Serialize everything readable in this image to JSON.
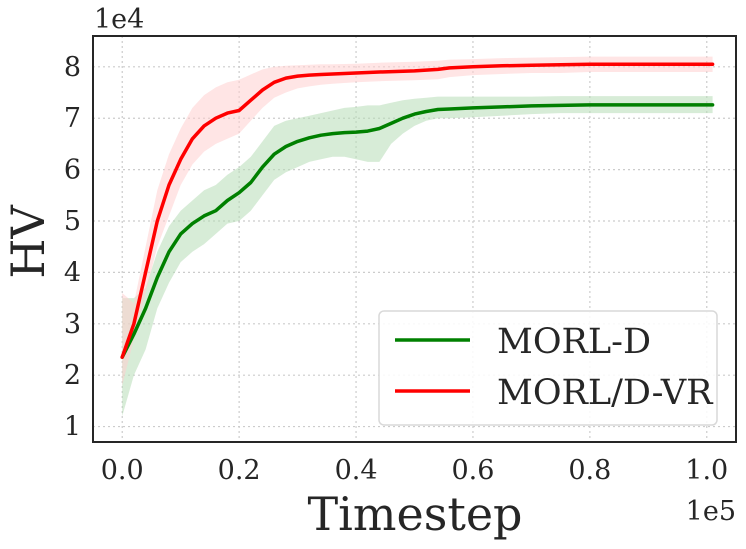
{
  "chart_data": {
    "type": "line",
    "title": "",
    "xlabel": "Timestep",
    "ylabel": "HV",
    "x_offset_label": "1e5",
    "y_offset_label": "1e4",
    "xlim": [
      -0.05,
      1.05
    ],
    "ylim": [
      0.7,
      8.6
    ],
    "xticks": [
      0.0,
      0.2,
      0.4,
      0.6,
      0.8,
      1.0
    ],
    "xtick_labels": [
      "0.0",
      "0.2",
      "0.4",
      "0.6",
      "0.8",
      "1.0"
    ],
    "yticks": [
      1,
      2,
      3,
      4,
      5,
      6,
      7,
      8
    ],
    "ytick_labels": [
      "1",
      "2",
      "3",
      "4",
      "5",
      "6",
      "7",
      "8"
    ],
    "grid": true,
    "legend_position": "lower-right",
    "series": [
      {
        "name": "MORL-D",
        "color": "#008000",
        "band_color": "#b7dcb7",
        "x": [
          0.0,
          0.02,
          0.04,
          0.06,
          0.08,
          0.1,
          0.12,
          0.14,
          0.16,
          0.18,
          0.2,
          0.22,
          0.24,
          0.26,
          0.28,
          0.3,
          0.32,
          0.34,
          0.36,
          0.38,
          0.4,
          0.42,
          0.44,
          0.46,
          0.48,
          0.5,
          0.52,
          0.54,
          0.56,
          0.6,
          0.65,
          0.7,
          0.75,
          0.8,
          0.85,
          0.9,
          0.95,
          1.01
        ],
        "values": [
          2.35,
          2.8,
          3.3,
          3.9,
          4.4,
          4.75,
          4.95,
          5.1,
          5.2,
          5.4,
          5.55,
          5.75,
          6.05,
          6.3,
          6.45,
          6.55,
          6.62,
          6.67,
          6.7,
          6.72,
          6.73,
          6.75,
          6.8,
          6.9,
          7.0,
          7.08,
          7.13,
          7.17,
          7.18,
          7.2,
          7.22,
          7.24,
          7.25,
          7.26,
          7.26,
          7.26,
          7.26,
          7.26
        ],
        "upper": [
          3.5,
          3.5,
          3.7,
          4.4,
          4.9,
          5.2,
          5.4,
          5.6,
          5.7,
          5.9,
          6.05,
          6.25,
          6.55,
          6.85,
          6.95,
          7.0,
          7.05,
          7.1,
          7.15,
          7.2,
          7.22,
          7.25,
          7.25,
          7.3,
          7.35,
          7.38,
          7.4,
          7.42,
          7.42,
          7.42,
          7.42,
          7.42,
          7.43,
          7.43,
          7.43,
          7.43,
          7.43,
          7.43
        ],
        "lower": [
          1.2,
          2.0,
          2.5,
          3.3,
          3.8,
          4.2,
          4.4,
          4.55,
          4.75,
          4.95,
          5.0,
          5.2,
          5.5,
          5.8,
          5.95,
          6.05,
          6.15,
          6.2,
          6.25,
          6.25,
          6.2,
          6.15,
          6.15,
          6.5,
          6.7,
          6.85,
          6.95,
          7.0,
          7.0,
          7.02,
          7.05,
          7.08,
          7.1,
          7.1,
          7.1,
          7.1,
          7.1,
          7.1
        ]
      },
      {
        "name": "MORL/D-VR",
        "color": "#ff0000",
        "band_color": "#ffcfcf",
        "x": [
          0.0,
          0.02,
          0.04,
          0.06,
          0.08,
          0.1,
          0.12,
          0.14,
          0.16,
          0.18,
          0.2,
          0.22,
          0.24,
          0.26,
          0.28,
          0.3,
          0.32,
          0.34,
          0.36,
          0.4,
          0.44,
          0.5,
          0.54,
          0.56,
          0.6,
          0.65,
          0.7,
          0.75,
          0.8,
          0.85,
          0.9,
          0.95,
          1.01
        ],
        "values": [
          2.35,
          3.0,
          4.0,
          5.0,
          5.7,
          6.2,
          6.6,
          6.85,
          7.0,
          7.1,
          7.15,
          7.35,
          7.55,
          7.7,
          7.78,
          7.82,
          7.84,
          7.85,
          7.86,
          7.88,
          7.9,
          7.92,
          7.95,
          7.98,
          8.0,
          8.02,
          8.03,
          8.04,
          8.05,
          8.05,
          8.05,
          8.05,
          8.05
        ],
        "upper": [
          3.6,
          3.4,
          4.5,
          5.6,
          6.3,
          6.8,
          7.2,
          7.45,
          7.6,
          7.7,
          7.75,
          7.85,
          7.95,
          8.0,
          8.02,
          8.03,
          8.04,
          8.05,
          8.05,
          8.06,
          8.08,
          8.1,
          8.12,
          8.14,
          8.15,
          8.17,
          8.18,
          8.19,
          8.2,
          8.2,
          8.2,
          8.2,
          8.2
        ],
        "lower": [
          1.8,
          2.7,
          3.6,
          4.5,
          5.1,
          5.7,
          6.1,
          6.35,
          6.5,
          6.6,
          6.7,
          6.95,
          7.2,
          7.4,
          7.5,
          7.58,
          7.62,
          7.65,
          7.67,
          7.7,
          7.72,
          7.74,
          7.76,
          7.8,
          7.84,
          7.86,
          7.88,
          7.88,
          7.9,
          7.9,
          7.9,
          7.9,
          7.9
        ]
      }
    ]
  }
}
